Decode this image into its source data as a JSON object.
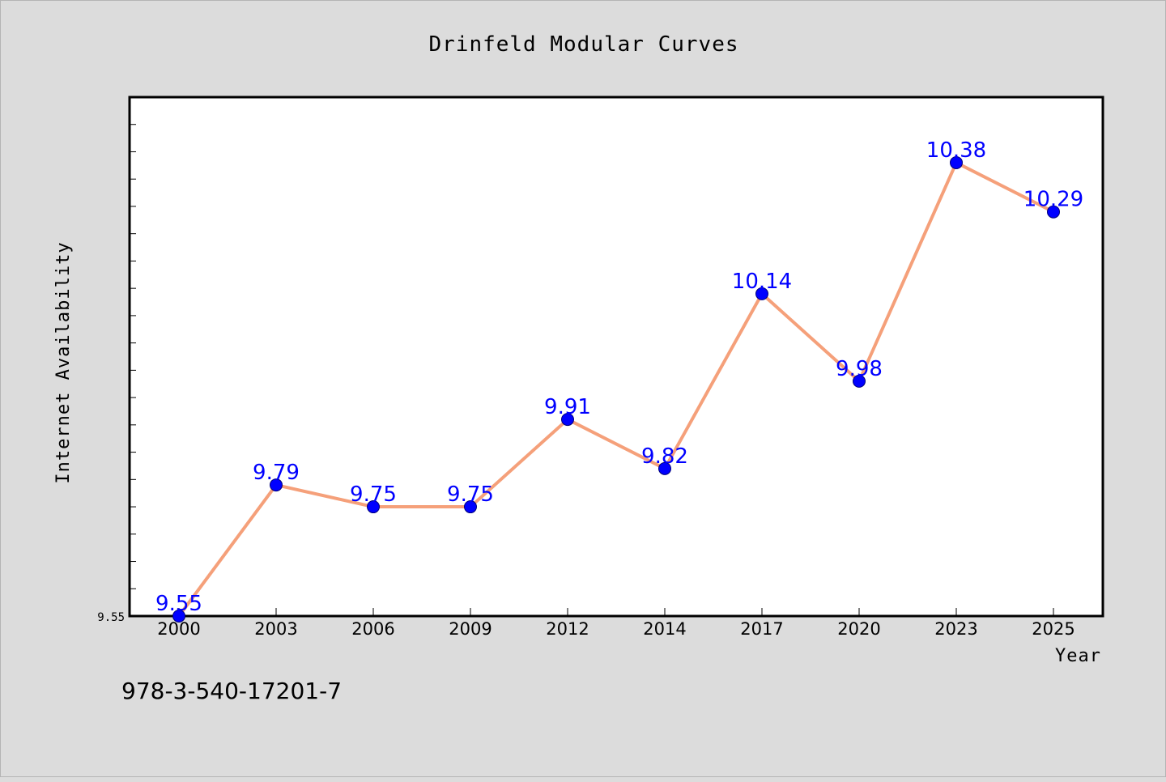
{
  "chart_data": {
    "type": "line",
    "title": "Drinfeld Modular Curves",
    "xlabel": "Year",
    "ylabel": "Internet Availability",
    "categories": [
      "2000",
      "2003",
      "2006",
      "2009",
      "2012",
      "2014",
      "2017",
      "2020",
      "2023",
      "2025"
    ],
    "series": [
      {
        "values": [
          9.55,
          9.79,
          9.75,
          9.75,
          9.91,
          9.82,
          10.14,
          9.98,
          10.38,
          10.29
        ],
        "labels": [
          "9.55",
          "9.79",
          "9.75",
          "9.75",
          "9.91",
          "9.82",
          "10.14",
          "9.98",
          "10.38",
          "10.29"
        ],
        "line_color": "#f5a07a",
        "marker_color": "#0000ff"
      }
    ],
    "ylim": [
      9.55,
      10.5
    ],
    "yticks_labeled": [
      "9.55"
    ],
    "grid": false,
    "legend": "none"
  },
  "footer_text": "978-3-540-17201-7",
  "colors": {
    "background": "#dcdcdc",
    "plot_background": "#ffffff",
    "data_label": "#0000ff"
  }
}
